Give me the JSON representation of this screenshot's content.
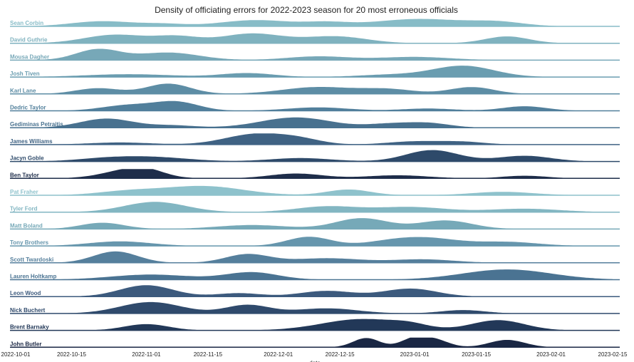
{
  "chart_data": {
    "type": "area",
    "subtype": "ridgeline",
    "title": "Density of officiating errors for 2022-2023 season for 20 most erroneous officials",
    "xlabel": "date",
    "ylabel": "",
    "xlim": [
      "2022-10-01",
      "2023-02-15"
    ],
    "x_ticks": [
      "2022-10-01",
      "2022-10-15",
      "2022-11-01",
      "2022-11-15",
      "2022-12-01",
      "2022-12-15",
      "2023-01-01",
      "2023-01-15",
      "2023-02-01",
      "2023-02-15"
    ],
    "grid": false,
    "legend": "none",
    "series": [
      {
        "name": "Sean Corbin",
        "color": "#87bcc7",
        "peaks": [
          [
            "2022-10-22",
            0.45,
            7
          ],
          [
            "2022-11-05",
            0.2,
            5
          ],
          [
            "2022-11-26",
            0.55,
            8
          ],
          [
            "2022-12-12",
            0.3,
            5
          ],
          [
            "2023-01-02",
            0.65,
            10
          ],
          [
            "2023-01-20",
            0.35,
            6
          ]
        ]
      },
      {
        "name": "David Guthrie",
        "color": "#7fb2bf",
        "peaks": [
          [
            "2022-10-25",
            0.75,
            7
          ],
          [
            "2022-11-08",
            0.55,
            5
          ],
          [
            "2022-11-25",
            0.85,
            7
          ],
          [
            "2022-12-14",
            0.6,
            7
          ],
          [
            "2023-01-22",
            0.6,
            5
          ]
        ]
      },
      {
        "name": "Mousa Dagher",
        "color": "#77a8b8",
        "peaks": [
          [
            "2022-10-21",
            1.0,
            5
          ],
          [
            "2022-11-06",
            0.7,
            7
          ],
          [
            "2022-12-10",
            0.35,
            7
          ],
          [
            "2023-01-01",
            0.3,
            8
          ]
        ]
      },
      {
        "name": "Josh Tiven",
        "color": "#6a9db0",
        "peaks": [
          [
            "2022-10-28",
            0.25,
            10
          ],
          [
            "2022-11-24",
            0.35,
            6
          ],
          [
            "2022-12-26",
            0.2,
            7
          ],
          [
            "2023-01-12",
            1.0,
            7
          ]
        ]
      },
      {
        "name": "Karl Lane",
        "color": "#5d8da5",
        "peaks": [
          [
            "2022-10-21",
            0.5,
            5
          ],
          [
            "2022-11-06",
            0.9,
            5
          ],
          [
            "2022-12-10",
            0.6,
            8
          ],
          [
            "2022-12-26",
            0.4,
            6
          ],
          [
            "2023-01-14",
            0.6,
            5
          ]
        ]
      },
      {
        "name": "Dedric Taylor",
        "color": "#517f9b",
        "peaks": [
          [
            "2022-10-28",
            0.5,
            6
          ],
          [
            "2022-11-08",
            0.75,
            5
          ],
          [
            "2022-12-10",
            0.3,
            7
          ],
          [
            "2023-01-04",
            0.2,
            6
          ],
          [
            "2023-01-26",
            0.4,
            5
          ]
        ]
      },
      {
        "name": "Gediminas Petraitis",
        "color": "#48718f",
        "peaks": [
          [
            "2022-10-23",
            0.8,
            6
          ],
          [
            "2022-11-07",
            0.2,
            5
          ],
          [
            "2022-12-05",
            0.9,
            8
          ],
          [
            "2022-12-26",
            0.3,
            5
          ],
          [
            "2023-01-04",
            0.4,
            5
          ]
        ]
      },
      {
        "name": "James Williams",
        "color": "#3f6283",
        "peaks": [
          [
            "2022-10-26",
            0.2,
            7
          ],
          [
            "2022-11-26",
            1.0,
            7
          ],
          [
            "2022-12-06",
            0.4,
            5
          ],
          [
            "2023-01-01",
            0.3,
            6
          ],
          [
            "2023-01-12",
            0.25,
            5
          ]
        ]
      },
      {
        "name": "Jacyn Goble",
        "color": "#2e4a6a",
        "peaks": [
          [
            "2022-10-23",
            0.25,
            7
          ],
          [
            "2022-11-03",
            0.35,
            8
          ],
          [
            "2022-12-06",
            0.3,
            7
          ],
          [
            "2023-01-05",
            1.0,
            6
          ],
          [
            "2023-01-26",
            0.5,
            6
          ]
        ]
      },
      {
        "name": "Ben Taylor",
        "color": "#1e2d4a",
        "peaks": [
          [
            "2022-10-28",
            0.9,
            6
          ],
          [
            "2022-11-01",
            0.5,
            4
          ],
          [
            "2022-12-05",
            0.55,
            6
          ],
          [
            "2022-12-28",
            0.35,
            7
          ],
          [
            "2023-01-26",
            0.3,
            5
          ]
        ]
      },
      {
        "name": "Pat Fraher",
        "color": "#8ec2cc",
        "peaks": [
          [
            "2022-10-28",
            0.35,
            7
          ],
          [
            "2022-11-14",
            0.8,
            9
          ],
          [
            "2022-12-17",
            0.5,
            5
          ],
          [
            "2023-01-21",
            0.3,
            7
          ]
        ]
      },
      {
        "name": "Tyler Ford",
        "color": "#82b6c2",
        "peaks": [
          [
            "2022-11-03",
            0.9,
            7
          ],
          [
            "2022-12-12",
            0.5,
            7
          ],
          [
            "2022-12-31",
            0.45,
            8
          ],
          [
            "2023-01-26",
            0.3,
            8
          ]
        ]
      },
      {
        "name": "Matt Boland",
        "color": "#76a9b8",
        "peaks": [
          [
            "2022-10-22",
            0.55,
            5
          ],
          [
            "2022-11-25",
            0.35,
            8
          ],
          [
            "2022-12-20",
            0.95,
            6
          ],
          [
            "2023-01-08",
            0.75,
            6
          ]
        ]
      },
      {
        "name": "Tony Brothers",
        "color": "#6696ad",
        "peaks": [
          [
            "2022-10-26",
            0.4,
            7
          ],
          [
            "2022-12-08",
            0.8,
            5
          ],
          [
            "2022-12-26",
            0.3,
            6
          ],
          [
            "2023-01-04",
            0.65,
            7
          ],
          [
            "2023-01-22",
            0.35,
            7
          ]
        ]
      },
      {
        "name": "Scott Twardoski",
        "color": "#557f9c",
        "peaks": [
          [
            "2022-10-25",
            1.0,
            5
          ],
          [
            "2022-11-24",
            0.75,
            5
          ],
          [
            "2022-12-12",
            0.4,
            8
          ],
          [
            "2023-01-03",
            0.3,
            7
          ]
        ]
      },
      {
        "name": "Lauren Holtkamp",
        "color": "#4a7392",
        "peaks": [
          [
            "2022-11-02",
            0.45,
            9
          ],
          [
            "2022-11-25",
            0.65,
            6
          ],
          [
            "2023-01-22",
            0.9,
            10
          ]
        ]
      },
      {
        "name": "Leon Wood",
        "color": "#3c5a7d",
        "peaks": [
          [
            "2022-11-01",
            1.0,
            6
          ],
          [
            "2022-11-22",
            0.3,
            5
          ],
          [
            "2022-12-12",
            0.5,
            6
          ],
          [
            "2022-12-31",
            0.7,
            6
          ]
        ]
      },
      {
        "name": "Nick Buchert",
        "color": "#2f4a6c",
        "peaks": [
          [
            "2022-11-02",
            1.0,
            7
          ],
          [
            "2022-11-24",
            0.75,
            5
          ],
          [
            "2022-12-12",
            0.45,
            7
          ],
          [
            "2023-01-12",
            0.3,
            5
          ]
        ]
      },
      {
        "name": "Brent Barnaky",
        "color": "#223858",
        "peaks": [
          [
            "2022-11-01",
            0.55,
            5
          ],
          [
            "2022-12-20",
            1.0,
            9
          ],
          [
            "2022-12-31",
            0.3,
            4
          ],
          [
            "2023-01-20",
            0.9,
            6
          ]
        ]
      },
      {
        "name": "John Butler",
        "color": "#1a2744",
        "peaks": [
          [
            "2022-12-21",
            1.0,
            3
          ],
          [
            "2023-01-01",
            1.0,
            3
          ],
          [
            "2023-01-06",
            0.7,
            3
          ],
          [
            "2023-01-22",
            0.8,
            4
          ]
        ]
      }
    ]
  }
}
